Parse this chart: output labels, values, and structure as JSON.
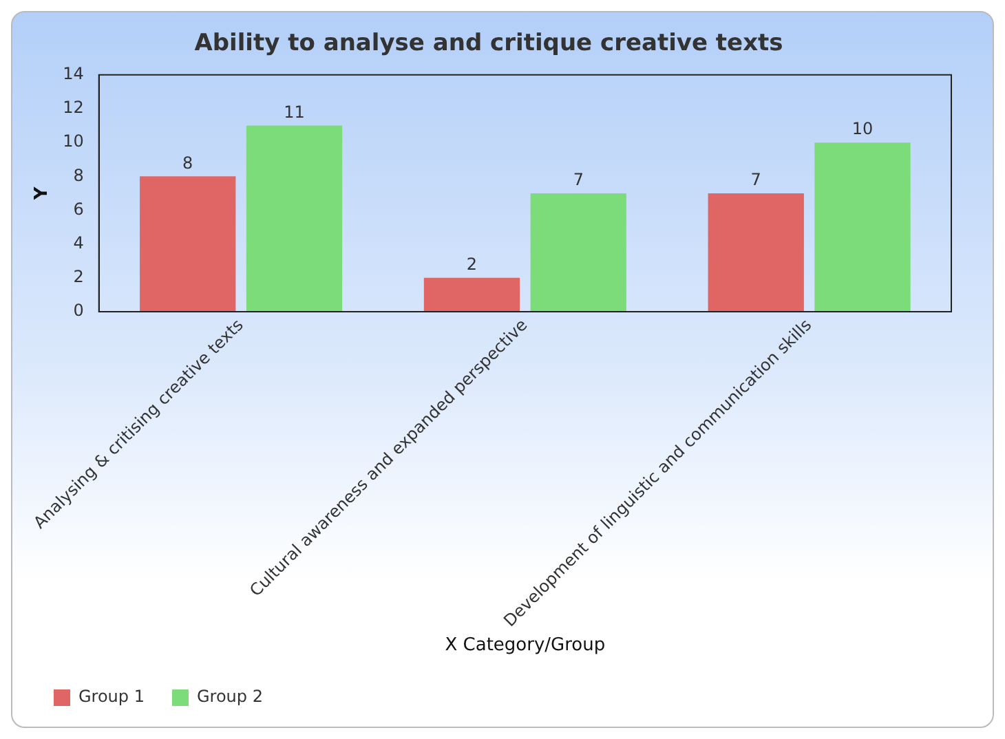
{
  "chart_data": {
    "type": "bar",
    "title": "Ability to analyse and critique creative texts",
    "xlabel": "X Category/Group",
    "ylabel": "Y",
    "categories": [
      "Analysing & critising creative texts",
      "Cultural awareness and expanded perspective",
      "Development of linguistic and communication skills"
    ],
    "series": [
      {
        "name": "Group 1",
        "color": "#e06666",
        "values": [
          8,
          2,
          7
        ]
      },
      {
        "name": "Group 2",
        "color": "#7ddc7a",
        "values": [
          11,
          7,
          10
        ]
      }
    ],
    "ylim": [
      0,
      14
    ],
    "yticks": [
      0,
      2,
      4,
      6,
      8,
      10,
      12,
      14
    ],
    "grid": false,
    "legend": "bottom left",
    "data_labels": true
  }
}
